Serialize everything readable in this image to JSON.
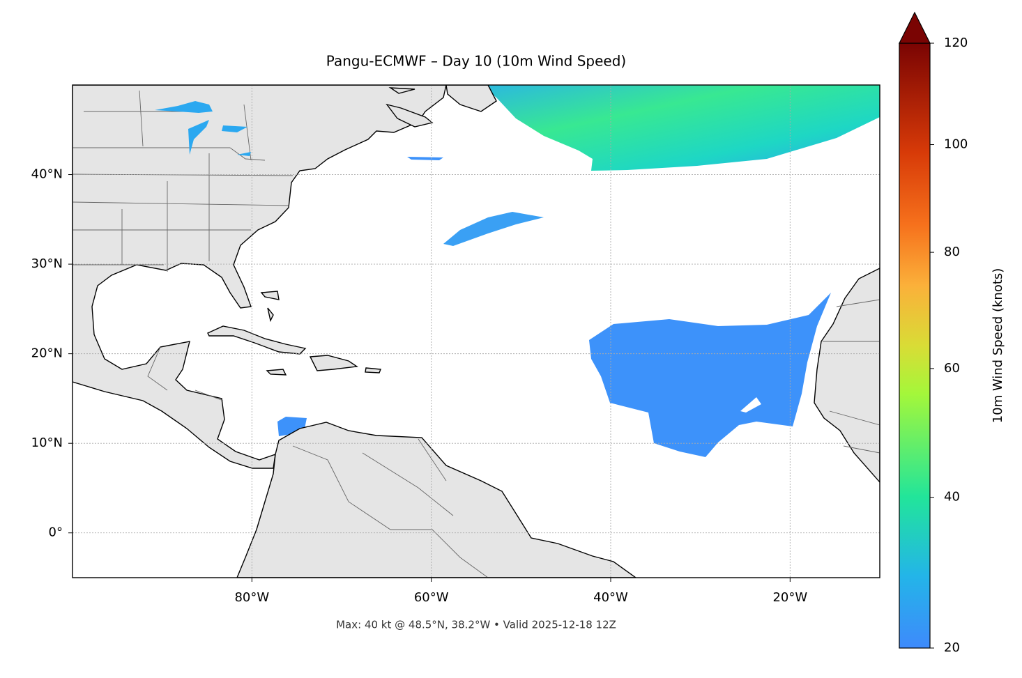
{
  "chart_data": {
    "type": "map",
    "title": "Pangu-ECMWF – Day 10 (10m Wind Speed)",
    "annotation": "Max: 40 kt @ 48.5°N, 38.2°W • Valid 2025-12-18 12Z",
    "xlim": [
      -100,
      -10
    ],
    "ylim": [
      -5,
      50
    ],
    "xticks": [
      {
        "value": -80,
        "label": "80°W"
      },
      {
        "value": -60,
        "label": "60°W"
      },
      {
        "value": -40,
        "label": "40°W"
      },
      {
        "value": -20,
        "label": "20°W"
      }
    ],
    "yticks": [
      {
        "value": 0,
        "label": "0°"
      },
      {
        "value": 10,
        "label": "10°N"
      },
      {
        "value": 20,
        "label": "20°N"
      },
      {
        "value": 30,
        "label": "30°N"
      },
      {
        "value": 40,
        "label": "40°N"
      }
    ],
    "grid": true,
    "colorbar": {
      "label": "10m Wind Speed (knots)",
      "lim": [
        20,
        120
      ],
      "ticks": [
        20,
        40,
        60,
        80,
        100,
        120
      ],
      "scale": "power",
      "exponent": 0.7,
      "extend": "max"
    }
  }
}
